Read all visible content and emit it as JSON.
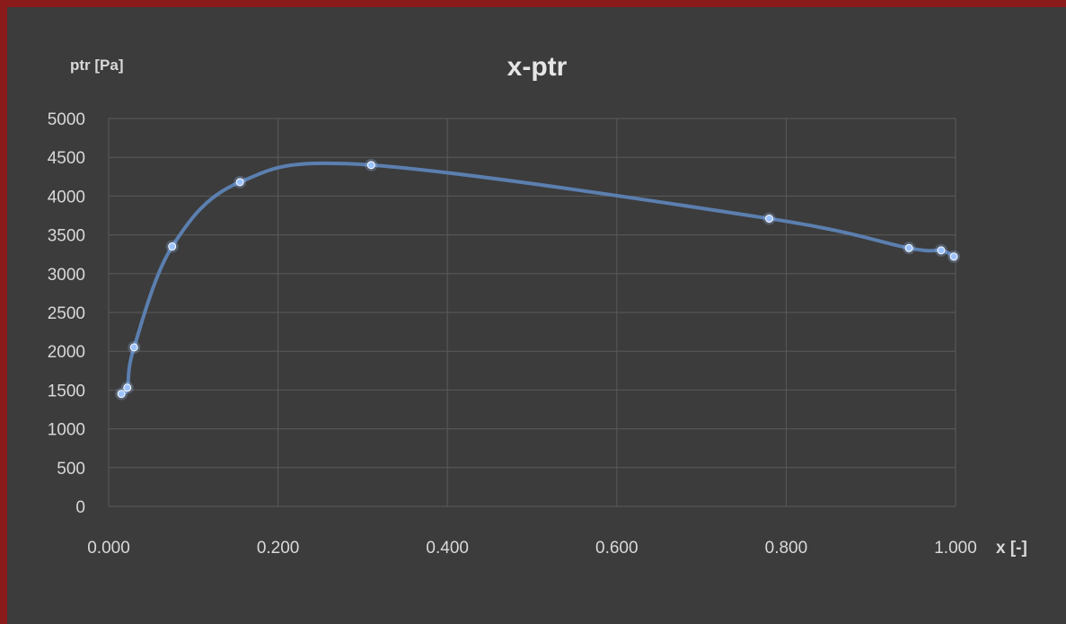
{
  "colors": {
    "background": "#3c3c3c",
    "border": "#8b1a1a",
    "gridline": "#5a5a5a",
    "series_line": "#5b7faf",
    "marker": "#9cc3ff",
    "text": "#d9d9d9"
  },
  "chart_data": {
    "type": "scatter",
    "title": "x-ptr",
    "xlabel": "x [-]",
    "ylabel": "ptr [Pa]",
    "xlim": [
      0.0,
      1.0
    ],
    "ylim": [
      0,
      5000
    ],
    "x_ticks": [
      "0.000",
      "0.200",
      "0.400",
      "0.600",
      "0.800",
      "1.000"
    ],
    "y_ticks": [
      "0",
      "500",
      "1000",
      "1500",
      "2000",
      "2500",
      "3000",
      "3500",
      "4000",
      "4500",
      "5000"
    ],
    "grid": true,
    "smoothed_line": true,
    "series": [
      {
        "x": [
          0.015,
          0.022,
          0.03,
          0.075,
          0.155,
          0.31,
          0.78,
          0.945,
          0.983,
          0.998
        ],
        "y": [
          1450,
          1530,
          2050,
          3350,
          4180,
          4400,
          3710,
          3330,
          3300,
          3220
        ]
      }
    ]
  }
}
